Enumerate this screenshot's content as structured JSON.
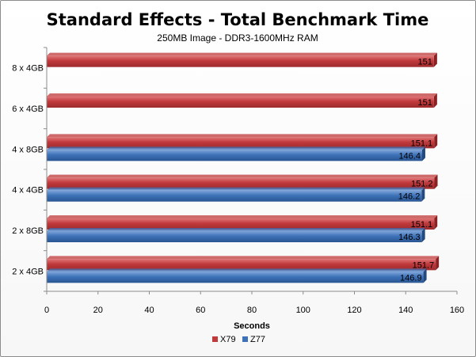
{
  "chart_data": {
    "type": "bar",
    "orientation": "horizontal",
    "title": "Standard Effects - Total Benchmark Time",
    "subtitle": "250MB Image - DDR3-1600MHz RAM",
    "xlabel": "Seconds",
    "ylabel": "",
    "xlim": [
      0,
      160
    ],
    "x_ticks": [
      "0",
      "20",
      "40",
      "60",
      "80",
      "100",
      "120",
      "140",
      "160"
    ],
    "categories": [
      "8 x 4GB",
      "6 x 4GB",
      "4 x 8GB",
      "4 x 4GB",
      "2 x 8GB",
      "2 x 4GB"
    ],
    "series": [
      {
        "name": "X79",
        "color": "#c0393b",
        "values": [
          151,
          151,
          151.1,
          151.2,
          151.1,
          151.7
        ],
        "labels": [
          "151",
          "151",
          "151.1",
          "151.2",
          "151.1",
          "151.7"
        ]
      },
      {
        "name": "Z77",
        "color": "#3d72b8",
        "values": [
          null,
          null,
          146.4,
          146.2,
          146.3,
          146.9
        ],
        "labels": [
          "",
          "",
          "146.4",
          "146.2",
          "146.3",
          "146.9"
        ]
      }
    ],
    "grid": false,
    "legend_position": "bottom"
  }
}
